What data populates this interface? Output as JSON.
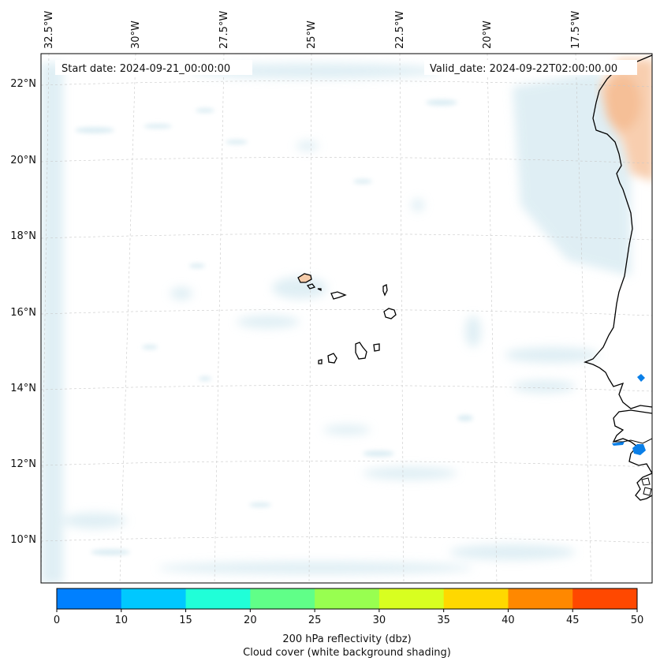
{
  "map": {
    "start_date": "Start date: 2024-09-21_00:00:00",
    "valid_date": "Valid_date: 2024-09-22T02:00:00.00",
    "lon_labels": [
      "32.5°W",
      "30°W",
      "27.5°W",
      "25°W",
      "22.5°W",
      "20°W",
      "17.5°W"
    ],
    "lat_labels": [
      "22°N",
      "20°N",
      "18°N",
      "16°N",
      "14°N",
      "12°N",
      "10°N"
    ]
  },
  "colorbar": {
    "ticks": [
      "0",
      "10",
      "15",
      "20",
      "25",
      "30",
      "35",
      "40",
      "45",
      "50"
    ],
    "colors": [
      "#0080ff",
      "#00c8ff",
      "#20ffd8",
      "#60ff88",
      "#98ff50",
      "#d8ff20",
      "#ffd800",
      "#ff8800",
      "#ff4800"
    ],
    "label_line1": "200 hPa reflectivity (dbz)",
    "label_line2": "Cloud cover (white background shading)"
  }
}
